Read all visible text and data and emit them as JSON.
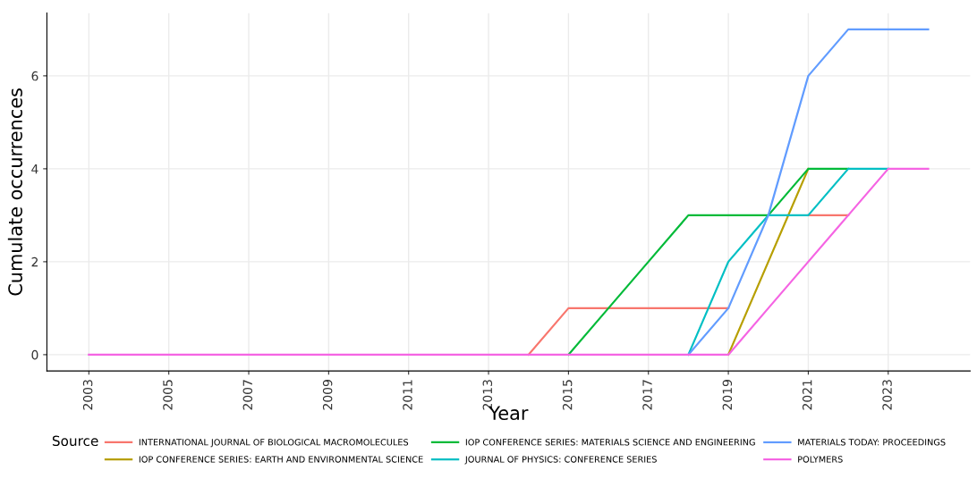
{
  "chart_data": {
    "type": "line",
    "xlabel": "Year",
    "ylabel": "Cumulate occurrences",
    "legend_title": "Source",
    "legend": "bottom",
    "grid": true,
    "x": [
      2003,
      2004,
      2005,
      2006,
      2007,
      2008,
      2009,
      2010,
      2011,
      2012,
      2013,
      2014,
      2015,
      2016,
      2017,
      2018,
      2019,
      2020,
      2021,
      2022,
      2023,
      2024
    ],
    "xlim": [
      2001.95,
      2025.05
    ],
    "xticks": [
      2003,
      2005,
      2007,
      2009,
      2011,
      2013,
      2015,
      2017,
      2019,
      2021,
      2023
    ],
    "ylim": [
      -0.35,
      7.35
    ],
    "yticks": [
      0,
      2,
      4,
      6
    ],
    "series": [
      {
        "name": "INTERNATIONAL JOURNAL OF BIOLOGICAL MACROMOLECULES",
        "color": "#f8766d",
        "values": [
          null,
          null,
          null,
          null,
          null,
          null,
          null,
          null,
          null,
          null,
          null,
          0,
          1,
          1,
          1,
          1,
          1,
          null,
          3,
          3,
          null,
          null
        ]
      },
      {
        "name": "IOP CONFERENCE SERIES: EARTH AND ENVIRONMENTAL SCIENCE",
        "color": "#b79f00",
        "values": [
          null,
          null,
          null,
          null,
          null,
          null,
          null,
          null,
          null,
          null,
          null,
          null,
          null,
          null,
          null,
          null,
          0,
          2,
          4,
          null,
          null,
          null
        ]
      },
      {
        "name": "IOP CONFERENCE SERIES: MATERIALS SCIENCE AND ENGINEERING",
        "color": "#00ba38",
        "values": [
          null,
          null,
          null,
          null,
          null,
          null,
          null,
          null,
          null,
          null,
          null,
          null,
          0,
          1,
          2,
          3,
          3,
          3,
          4,
          4,
          null,
          null
        ]
      },
      {
        "name": "JOURNAL OF PHYSICS: CONFERENCE SERIES",
        "color": "#00bfc4",
        "values": [
          null,
          null,
          null,
          null,
          null,
          null,
          null,
          null,
          null,
          null,
          null,
          null,
          null,
          null,
          null,
          0,
          2,
          3,
          3,
          4,
          4,
          null
        ]
      },
      {
        "name": "MATERIALS TODAY: PROCEEDINGS",
        "color": "#619cff",
        "values": [
          null,
          null,
          null,
          null,
          null,
          null,
          null,
          null,
          null,
          null,
          null,
          null,
          null,
          null,
          null,
          0,
          1,
          3,
          6,
          7,
          7,
          7
        ]
      },
      {
        "name": "POLYMERS",
        "color": "#f564e3",
        "values": [
          0,
          0,
          0,
          0,
          0,
          0,
          0,
          0,
          0,
          0,
          0,
          0,
          0,
          0,
          0,
          0,
          0,
          1,
          2,
          3,
          4,
          4
        ]
      }
    ]
  }
}
